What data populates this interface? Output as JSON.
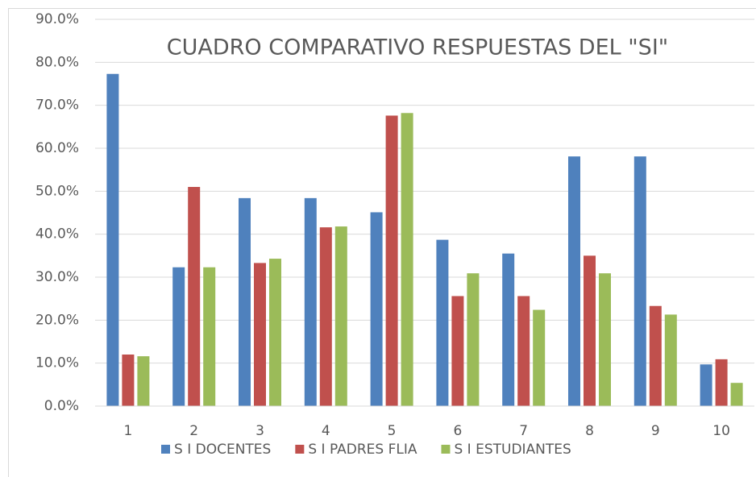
{
  "chart_data": {
    "type": "bar",
    "title": "CUADRO COMPARATIVO RESPUESTAS DEL \"SI\"",
    "categories": [
      "1",
      "2",
      "3",
      "4",
      "5",
      "6",
      "7",
      "8",
      "9",
      "10"
    ],
    "series": [
      {
        "name": "S I DOCENTES",
        "color": "#4f81bd",
        "values": [
          77.3,
          32.3,
          48.4,
          48.4,
          45.1,
          38.7,
          35.5,
          58.1,
          58.1,
          9.7
        ]
      },
      {
        "name": "S I PADRES FLIA",
        "color": "#c0504d",
        "values": [
          12.0,
          51.0,
          33.3,
          41.6,
          67.6,
          25.6,
          25.6,
          35.0,
          23.3,
          10.9
        ]
      },
      {
        "name": "S I ESTUDIANTES",
        "color": "#9bbb59",
        "values": [
          11.6,
          32.3,
          34.3,
          41.8,
          68.2,
          30.9,
          22.4,
          30.9,
          21.3,
          5.4
        ]
      }
    ],
    "ylim": [
      0,
      90
    ],
    "yticks": [
      {
        "value": 0,
        "label": "0.0%"
      },
      {
        "value": 10,
        "label": "10.0%"
      },
      {
        "value": 20,
        "label": "20.0%"
      },
      {
        "value": 30,
        "label": "30.0%"
      },
      {
        "value": 40,
        "label": "40.0%"
      },
      {
        "value": 50,
        "label": "50.0%"
      },
      {
        "value": 60,
        "label": "60.0%"
      },
      {
        "value": 70,
        "label": "70.0%"
      },
      {
        "value": 80,
        "label": "80.0%"
      },
      {
        "value": 90,
        "label": "90.0%"
      }
    ],
    "grid": true,
    "legend": "bottom"
  }
}
